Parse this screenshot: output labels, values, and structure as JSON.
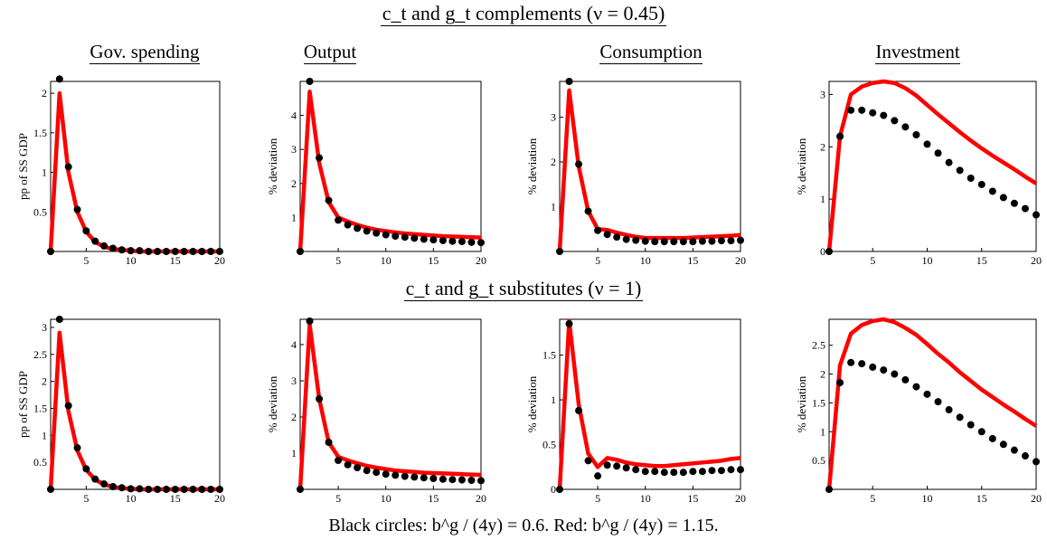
{
  "row_titles": [
    "c_t and g_t complements (ν = 0.45)",
    "c_t and g_t substitutes (ν = 1)"
  ],
  "column_titles": [
    "Gov. spending",
    "Output",
    "Consumption",
    "Investment"
  ],
  "caption": "Black circles: b^g / (4y) = 0.6. Red: b^g / (4y) = 1.15.",
  "colors": {
    "black_series": "#000000",
    "red_series": "#ff0000"
  },
  "chart_data": [
    {
      "type": "line",
      "id": "r0c0",
      "ylabel": "pp of SS GDP",
      "xlim": [
        1,
        20
      ],
      "ylim": [
        0,
        2.15
      ],
      "xticks": [
        5,
        10,
        15,
        20
      ],
      "yticks": [
        0.5,
        1,
        1.5,
        2
      ],
      "series": [
        {
          "name": "b^g/(4y) = 0.6",
          "style": "circles",
          "x": [
            1,
            2,
            3,
            4,
            5,
            6,
            7,
            8,
            9,
            10,
            11,
            12,
            13,
            14,
            15,
            16,
            17,
            18,
            19,
            20
          ],
          "y": [
            0,
            2.18,
            1.07,
            0.53,
            0.26,
            0.13,
            0.07,
            0.04,
            0.02,
            0.01,
            0.01,
            0,
            0,
            0,
            0,
            0,
            0,
            0,
            0,
            0
          ]
        },
        {
          "name": "b^g/(4y) = 1.15",
          "style": "line",
          "x": [
            1,
            2,
            3,
            4,
            5,
            6,
            7,
            8,
            9,
            10,
            11,
            12,
            13,
            14,
            15,
            16,
            17,
            18,
            19,
            20
          ],
          "y": [
            0,
            2.0,
            1.0,
            0.5,
            0.25,
            0.12,
            0.06,
            0.03,
            0.02,
            0.01,
            0,
            0,
            0,
            0,
            0,
            0,
            0,
            0,
            0,
            0
          ]
        }
      ]
    },
    {
      "type": "line",
      "id": "r0c1",
      "ylabel": "% deviation",
      "xlim": [
        1,
        20
      ],
      "ylim": [
        0,
        5.0
      ],
      "xticks": [
        5,
        10,
        15,
        20
      ],
      "yticks": [
        1,
        2,
        3,
        4
      ],
      "series": [
        {
          "name": "b^g/(4y) = 0.6",
          "style": "circles",
          "x": [
            1,
            2,
            3,
            4,
            5,
            6,
            7,
            8,
            9,
            10,
            11,
            12,
            13,
            14,
            15,
            16,
            17,
            18,
            19,
            20
          ],
          "y": [
            0,
            5.0,
            2.75,
            1.5,
            0.92,
            0.78,
            0.68,
            0.6,
            0.54,
            0.49,
            0.45,
            0.42,
            0.39,
            0.36,
            0.34,
            0.32,
            0.3,
            0.29,
            0.27,
            0.26
          ]
        },
        {
          "name": "b^g/(4y) = 1.15",
          "style": "line",
          "x": [
            1,
            2,
            3,
            4,
            5,
            6,
            7,
            8,
            9,
            10,
            11,
            12,
            13,
            14,
            15,
            16,
            17,
            18,
            19,
            20
          ],
          "y": [
            0,
            4.7,
            2.6,
            1.45,
            1.0,
            0.88,
            0.78,
            0.7,
            0.64,
            0.6,
            0.56,
            0.53,
            0.51,
            0.49,
            0.47,
            0.45,
            0.44,
            0.43,
            0.42,
            0.41
          ]
        }
      ]
    },
    {
      "type": "line",
      "id": "r0c2",
      "ylabel": "% deviation",
      "xlim": [
        1,
        20
      ],
      "ylim": [
        0,
        3.8
      ],
      "xticks": [
        5,
        10,
        15,
        20
      ],
      "yticks": [
        1,
        2,
        3
      ],
      "series": [
        {
          "name": "b^g/(4y) = 0.6",
          "style": "circles",
          "x": [
            1,
            2,
            3,
            4,
            5,
            6,
            7,
            8,
            9,
            10,
            11,
            12,
            13,
            14,
            15,
            16,
            17,
            18,
            19,
            20
          ],
          "y": [
            0,
            3.8,
            1.95,
            0.9,
            0.47,
            0.38,
            0.32,
            0.27,
            0.25,
            0.23,
            0.22,
            0.22,
            0.22,
            0.22,
            0.22,
            0.23,
            0.23,
            0.24,
            0.24,
            0.25
          ]
        },
        {
          "name": "b^g/(4y) = 1.15",
          "style": "line",
          "x": [
            1,
            2,
            3,
            4,
            5,
            6,
            7,
            8,
            9,
            10,
            11,
            12,
            13,
            14,
            15,
            16,
            17,
            18,
            19,
            20
          ],
          "y": [
            0,
            3.6,
            1.9,
            0.9,
            0.5,
            0.48,
            0.42,
            0.37,
            0.33,
            0.3,
            0.3,
            0.3,
            0.3,
            0.3,
            0.31,
            0.32,
            0.33,
            0.34,
            0.35,
            0.37
          ]
        }
      ]
    },
    {
      "type": "line",
      "id": "r0c3",
      "ylabel": "% deviation",
      "xlim": [
        1,
        20
      ],
      "ylim": [
        0,
        3.25
      ],
      "xticks": [
        5,
        10,
        15,
        20
      ],
      "yticks": [
        0,
        1,
        2,
        3
      ],
      "series": [
        {
          "name": "b^g/(4y) = 0.6",
          "style": "circles",
          "x": [
            1,
            2,
            3,
            4,
            5,
            6,
            7,
            8,
            9,
            10,
            11,
            12,
            13,
            14,
            15,
            16,
            17,
            18,
            19,
            20
          ],
          "y": [
            0,
            2.2,
            2.7,
            2.7,
            2.65,
            2.6,
            2.5,
            2.38,
            2.23,
            2.05,
            1.88,
            1.7,
            1.55,
            1.4,
            1.28,
            1.15,
            1.03,
            0.92,
            0.82,
            0.7
          ]
        },
        {
          "name": "b^g/(4y) = 1.15",
          "style": "line",
          "x": [
            1,
            2,
            3,
            4,
            5,
            6,
            7,
            8,
            9,
            10,
            11,
            12,
            13,
            14,
            15,
            16,
            17,
            18,
            19,
            20
          ],
          "y": [
            0,
            2.2,
            3.0,
            3.15,
            3.22,
            3.25,
            3.22,
            3.12,
            2.98,
            2.8,
            2.62,
            2.45,
            2.28,
            2.12,
            1.97,
            1.83,
            1.7,
            1.57,
            1.43,
            1.3
          ]
        }
      ]
    },
    {
      "type": "line",
      "id": "r1c0",
      "ylabel": "pp of SS GDP",
      "xlim": [
        1,
        20
      ],
      "ylim": [
        0,
        3.15
      ],
      "xticks": [
        5,
        10,
        15,
        20
      ],
      "yticks": [
        0.5,
        1,
        1.5,
        2,
        2.5,
        3
      ],
      "series": [
        {
          "name": "b^g/(4y) = 0.6",
          "style": "circles",
          "x": [
            1,
            2,
            3,
            4,
            5,
            6,
            7,
            8,
            9,
            10,
            11,
            12,
            13,
            14,
            15,
            16,
            17,
            18,
            19,
            20
          ],
          "y": [
            0,
            3.15,
            1.55,
            0.77,
            0.38,
            0.19,
            0.1,
            0.05,
            0.03,
            0.01,
            0.01,
            0,
            0,
            0,
            0,
            0,
            0,
            0,
            0,
            0
          ]
        },
        {
          "name": "b^g/(4y) = 1.15",
          "style": "line",
          "x": [
            1,
            2,
            3,
            4,
            5,
            6,
            7,
            8,
            9,
            10,
            11,
            12,
            13,
            14,
            15,
            16,
            17,
            18,
            19,
            20
          ],
          "y": [
            0,
            2.9,
            1.45,
            0.72,
            0.36,
            0.18,
            0.09,
            0.05,
            0.02,
            0.01,
            0,
            0,
            0,
            0,
            0,
            0,
            0,
            0,
            0,
            0
          ]
        }
      ]
    },
    {
      "type": "line",
      "id": "r1c1",
      "ylabel": "% deviation",
      "xlim": [
        1,
        20
      ],
      "ylim": [
        0,
        4.7
      ],
      "xticks": [
        5,
        10,
        15,
        20
      ],
      "yticks": [
        1,
        2,
        3,
        4
      ],
      "series": [
        {
          "name": "b^g/(4y) = 0.6",
          "style": "circles",
          "x": [
            1,
            2,
            3,
            4,
            5,
            6,
            7,
            8,
            9,
            10,
            11,
            12,
            13,
            14,
            15,
            16,
            17,
            18,
            19,
            20
          ],
          "y": [
            0,
            4.65,
            2.5,
            1.3,
            0.8,
            0.68,
            0.6,
            0.52,
            0.47,
            0.42,
            0.39,
            0.36,
            0.34,
            0.32,
            0.3,
            0.28,
            0.27,
            0.26,
            0.25,
            0.24
          ]
        },
        {
          "name": "b^g/(4y) = 1.15",
          "style": "line",
          "x": [
            1,
            2,
            3,
            4,
            5,
            6,
            7,
            8,
            9,
            10,
            11,
            12,
            13,
            14,
            15,
            16,
            17,
            18,
            19,
            20
          ],
          "y": [
            0,
            4.55,
            2.5,
            1.3,
            0.9,
            0.8,
            0.72,
            0.65,
            0.6,
            0.56,
            0.52,
            0.5,
            0.48,
            0.46,
            0.45,
            0.44,
            0.43,
            0.42,
            0.41,
            0.4
          ]
        }
      ]
    },
    {
      "type": "line",
      "id": "r1c2",
      "ylabel": "% deviation",
      "xlim": [
        1,
        20
      ],
      "ylim": [
        0,
        1.9
      ],
      "xticks": [
        5,
        10,
        15,
        20
      ],
      "yticks": [
        0,
        0.5,
        1,
        1.5
      ],
      "series": [
        {
          "name": "b^g/(4y) = 0.6",
          "style": "circles",
          "x": [
            1,
            2,
            3,
            4,
            5,
            6,
            7,
            8,
            9,
            10,
            11,
            12,
            13,
            14,
            15,
            16,
            17,
            18,
            19,
            20
          ],
          "y": [
            0,
            1.85,
            0.88,
            0.32,
            0.15,
            0.27,
            0.26,
            0.24,
            0.22,
            0.2,
            0.2,
            0.19,
            0.19,
            0.19,
            0.2,
            0.2,
            0.21,
            0.21,
            0.22,
            0.22
          ]
        },
        {
          "name": "b^g/(4y) = 1.15",
          "style": "line",
          "x": [
            1,
            2,
            3,
            4,
            5,
            6,
            7,
            8,
            9,
            10,
            11,
            12,
            13,
            14,
            15,
            16,
            17,
            18,
            19,
            20
          ],
          "y": [
            0,
            1.88,
            0.95,
            0.4,
            0.25,
            0.35,
            0.33,
            0.3,
            0.28,
            0.27,
            0.26,
            0.26,
            0.27,
            0.28,
            0.29,
            0.3,
            0.31,
            0.32,
            0.34,
            0.35
          ]
        }
      ]
    },
    {
      "type": "line",
      "id": "r1c3",
      "ylabel": "% deviation",
      "xlim": [
        1,
        20
      ],
      "ylim": [
        0,
        2.95
      ],
      "xticks": [
        5,
        10,
        15,
        20
      ],
      "yticks": [
        0.5,
        1,
        1.5,
        2,
        2.5
      ],
      "series": [
        {
          "name": "b^g/(4y) = 0.6",
          "style": "circles",
          "x": [
            1,
            2,
            3,
            4,
            5,
            6,
            7,
            8,
            9,
            10,
            11,
            12,
            13,
            14,
            15,
            16,
            17,
            18,
            19,
            20
          ],
          "y": [
            0,
            1.85,
            2.2,
            2.18,
            2.12,
            2.07,
            2.0,
            1.9,
            1.78,
            1.65,
            1.52,
            1.38,
            1.25,
            1.12,
            1.0,
            0.88,
            0.78,
            0.68,
            0.58,
            0.48
          ]
        },
        {
          "name": "b^g/(4y) = 1.15",
          "style": "line",
          "x": [
            1,
            2,
            3,
            4,
            5,
            6,
            7,
            8,
            9,
            10,
            11,
            12,
            13,
            14,
            15,
            16,
            17,
            18,
            19,
            20
          ],
          "y": [
            0,
            2.15,
            2.7,
            2.85,
            2.92,
            2.95,
            2.9,
            2.8,
            2.68,
            2.52,
            2.35,
            2.2,
            2.03,
            1.88,
            1.73,
            1.6,
            1.47,
            1.35,
            1.22,
            1.1
          ]
        }
      ]
    }
  ]
}
